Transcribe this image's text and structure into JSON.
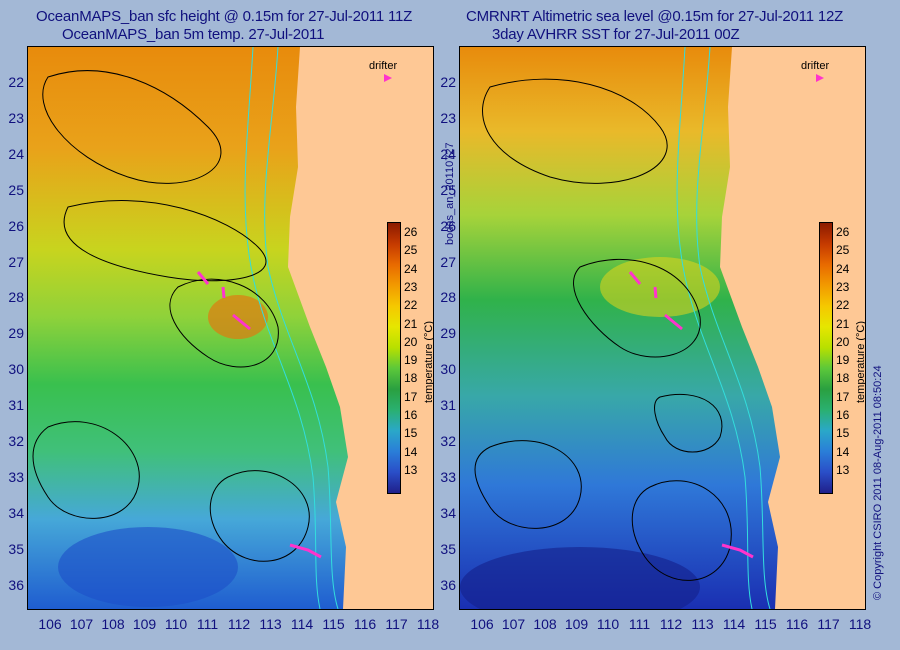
{
  "titles": {
    "left_line1": "OceanMAPS_ban sfc height @ 0.15m for 27-Jul-2011 11Z",
    "left_line2": "OceanMAPS_ban 5m temp. 27-Jul-2011",
    "right_line1": "CMRNRT Altimetric sea level  @0.15m  for 27-Jul-2011 12Z",
    "right_line2": "3day AVHRR SST for 27-Jul-2011 00Z"
  },
  "axes": {
    "lat_labels": [
      "22",
      "23",
      "24",
      "25",
      "26",
      "27",
      "28",
      "29",
      "30",
      "31",
      "32",
      "33",
      "34",
      "35",
      "36"
    ],
    "lon_labels": [
      "106",
      "107",
      "108",
      "109",
      "110",
      "111",
      "112",
      "113",
      "114",
      "115",
      "116",
      "117",
      "118"
    ]
  },
  "legend": {
    "drifter_label": "drifter",
    "drifter_color": "#ff33cc",
    "colorbar_ticks": [
      "26",
      "25",
      "24",
      "23",
      "22",
      "21",
      "20",
      "19",
      "18",
      "17",
      "16",
      "15",
      "14",
      "13"
    ],
    "colorbar_label": "temperature (°C)",
    "colorbar_min": 12.5,
    "colorbar_max": 26.8
  },
  "side_text": {
    "middle": "bodas_an_20110727",
    "right": "© Copyright CSIRO 2011   08-Aug-2011 08:50:24"
  },
  "colors": {
    "background": "#a3b8d6",
    "land": "#fec895",
    "text": "#10107e",
    "contour": "#000000",
    "isobath": "#33dddd"
  }
}
